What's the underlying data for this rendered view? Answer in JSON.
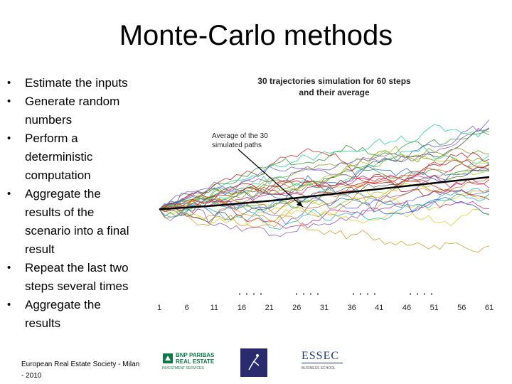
{
  "slide": {
    "title": "Monte-Carlo methods",
    "bullets": [
      "Estimate the inputs",
      "Generate random\nnumbers",
      "Perform a\ndeterministic\ncomputation",
      "Aggregate the\nresults of the\nscenario into a final\nresult",
      "Repeat the last two\nsteps several times",
      "Aggregate the\nresults"
    ],
    "bullet_symbol": "•",
    "footer": "European Real Estate Society - Milan\n- 2010",
    "logos": {
      "bnp": {
        "line1": "BNP PARIBAS",
        "line2": "REAL ESTATE",
        "line3": "INVESTMENT SERVICES",
        "color": "#0b7a45"
      },
      "essec": {
        "name": "ESSEC",
        "sub": "BUSINESS SCHOOL",
        "color": "#1f3a7a"
      },
      "middle": {
        "color": "#2a2a6e"
      }
    }
  },
  "chart_data": {
    "type": "line",
    "title": "30 trajectories simulation for 60 steps\nand their average",
    "annotation": "Average of the 30\nsimulated paths",
    "x_ticks": [
      "1",
      "6",
      "11",
      "16",
      "21",
      "26",
      "31",
      "36",
      "41",
      "46",
      "51",
      "56",
      "61"
    ],
    "xlim": [
      1,
      61
    ],
    "ylim": [
      0.4,
      1.8
    ],
    "n_paths": 30,
    "steps": 60,
    "average": {
      "x": [
        1,
        11,
        21,
        31,
        41,
        51,
        61
      ],
      "y": [
        1.0,
        1.03,
        1.07,
        1.12,
        1.17,
        1.22,
        1.27
      ]
    },
    "colors": [
      "#d4d42a",
      "#2ab0d4",
      "#9a5ab8",
      "#d46a2a",
      "#3a9a3a",
      "#d42a8a",
      "#2a6ad4",
      "#8aa02a",
      "#d4a02a",
      "#6a6ad4",
      "#2ad49a",
      "#b82a2a",
      "#5a5a5a",
      "#a0d42a",
      "#d42a2a"
    ]
  }
}
